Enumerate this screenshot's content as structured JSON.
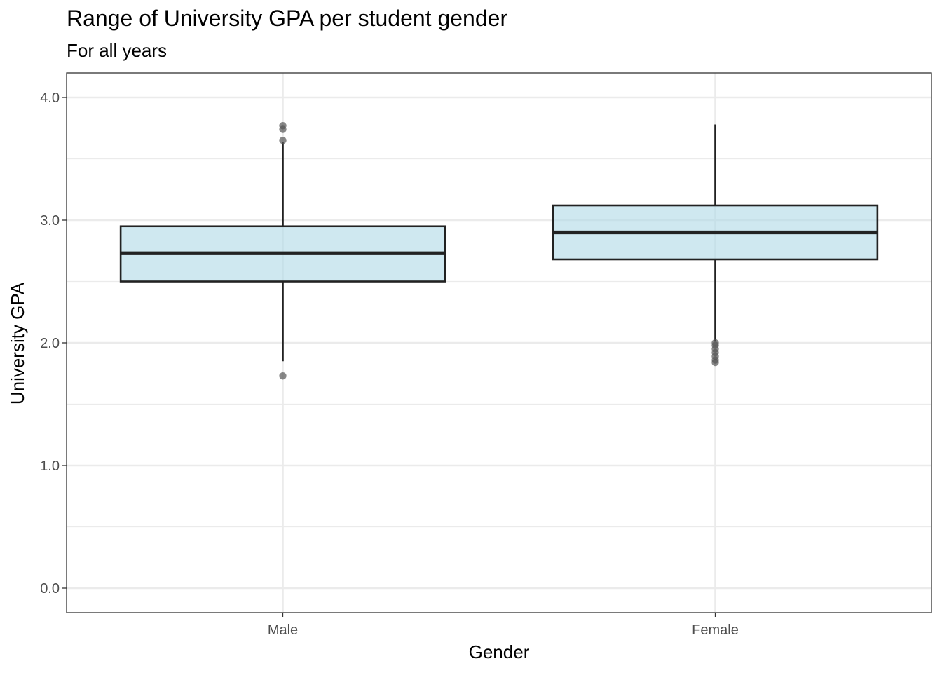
{
  "chart_data": {
    "type": "boxplot",
    "title": "Range of University GPA per student gender",
    "subtitle": "For all years",
    "xlabel": "Gender",
    "ylabel": "University GPA",
    "categories": [
      "Male",
      "Female"
    ],
    "ylim": [
      -0.2,
      4.2
    ],
    "y_ticks": [
      0.0,
      1.0,
      2.0,
      3.0,
      4.0
    ],
    "y_tick_labels": [
      "0.0",
      "1.0",
      "2.0",
      "3.0",
      "4.0"
    ],
    "grid": true,
    "boxes": [
      {
        "category": "Male",
        "whisker_low": 1.85,
        "q1": 2.5,
        "median": 2.73,
        "q3": 2.95,
        "whisker_high": 3.64,
        "outliers": [
          1.73,
          3.65,
          3.74,
          3.77
        ]
      },
      {
        "category": "Female",
        "whisker_low": 2.01,
        "q1": 2.68,
        "median": 2.9,
        "q3": 3.12,
        "whisker_high": 3.78,
        "outliers": [
          1.84,
          1.86,
          1.89,
          1.92,
          1.95,
          1.98,
          2.0
        ]
      }
    ],
    "colors": {
      "box_fill": "#add8e6",
      "box_stroke": "#222222",
      "outlier": "#555555",
      "grid": "#ebebeb",
      "panel_border": "#333333"
    }
  }
}
